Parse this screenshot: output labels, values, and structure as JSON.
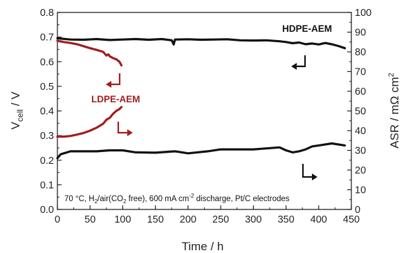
{
  "chart_data": {
    "type": "line",
    "xlabel": "Time / h",
    "ylabel": {
      "main": "V",
      "sub": "cell",
      "unit": "  / V"
    },
    "y2label": {
      "text": "ASR / mΩ cm",
      "sup": "2"
    },
    "xlim": [
      0,
      450
    ],
    "ylim": [
      0.0,
      0.8
    ],
    "y2lim": [
      0,
      100
    ],
    "xticks": [
      0,
      50,
      100,
      150,
      200,
      250,
      300,
      350,
      400,
      450
    ],
    "yticks": [
      "0.0",
      "0.1",
      "0.2",
      "0.3",
      "0.4",
      "0.5",
      "0.6",
      "0.7",
      "0.8"
    ],
    "y2ticks": [
      0,
      10,
      20,
      30,
      40,
      50,
      60,
      70,
      80,
      90,
      100
    ],
    "grid": false,
    "annotation": {
      "parts": [
        {
          "t": "70 °C, H"
        },
        {
          "t": "2",
          "s": "sub"
        },
        {
          "t": "/air(CO"
        },
        {
          "t": "2",
          "s": "sub"
        },
        {
          "t": " free), 600 mA cm"
        },
        {
          "t": "-2",
          "s": "sup"
        },
        {
          "t": " discharge,  Pt/C electrodes"
        }
      ]
    },
    "series": [
      {
        "name": "HDPE-AEM",
        "quantity": "voltage",
        "axis": "left",
        "color": "#111111",
        "x": [
          0,
          20,
          40,
          60,
          80,
          100,
          120,
          140,
          160,
          175,
          178,
          180,
          200,
          220,
          240,
          260,
          280,
          300,
          320,
          340,
          350,
          360,
          370,
          380,
          390,
          400,
          410,
          420,
          430,
          440
        ],
        "y": [
          0.695,
          0.69,
          0.689,
          0.692,
          0.688,
          0.69,
          0.692,
          0.689,
          0.692,
          0.687,
          0.67,
          0.69,
          0.691,
          0.689,
          0.69,
          0.691,
          0.687,
          0.686,
          0.687,
          0.683,
          0.68,
          0.675,
          0.678,
          0.671,
          0.674,
          0.67,
          0.676,
          0.671,
          0.664,
          0.655
        ]
      },
      {
        "name": "LDPE-AEM",
        "quantity": "voltage",
        "axis": "left",
        "color": "#a31d1d",
        "x": [
          0,
          10,
          20,
          30,
          40,
          50,
          60,
          70,
          75,
          78,
          80,
          85,
          90,
          95,
          98
        ],
        "y": [
          0.685,
          0.68,
          0.676,
          0.671,
          0.663,
          0.655,
          0.648,
          0.64,
          0.625,
          0.63,
          0.622,
          0.615,
          0.61,
          0.6,
          0.585
        ]
      },
      {
        "name": "LDPE-AEM",
        "quantity": "ASR",
        "axis": "right",
        "color": "#a31d1d",
        "x": [
          0,
          10,
          20,
          30,
          40,
          50,
          60,
          70,
          75,
          80,
          85,
          90,
          95,
          98
        ],
        "y": [
          37,
          37,
          37.3,
          38,
          38.8,
          40,
          41.5,
          43.5,
          45.5,
          46.5,
          48.5,
          50,
          51,
          52
        ]
      },
      {
        "name": "HDPE-AEM",
        "quantity": "ASR",
        "axis": "right",
        "color": "#111111",
        "x": [
          0,
          5,
          20,
          40,
          60,
          80,
          100,
          120,
          150,
          180,
          200,
          230,
          250,
          280,
          300,
          320,
          340,
          350,
          360,
          370,
          380,
          390,
          400,
          420,
          440
        ],
        "y": [
          26,
          28,
          29.5,
          29.5,
          29.5,
          30,
          30,
          29,
          28.8,
          29.5,
          28.5,
          29.5,
          30.5,
          30.5,
          30.5,
          31,
          31.5,
          30,
          29,
          29.5,
          30.5,
          32,
          32.5,
          33.5,
          32.5
        ]
      }
    ],
    "labels": [
      {
        "text": "HDPE-AEM",
        "color": "#111111"
      },
      {
        "text": "LDPE-AEM",
        "color": "#a31d1d"
      }
    ]
  }
}
